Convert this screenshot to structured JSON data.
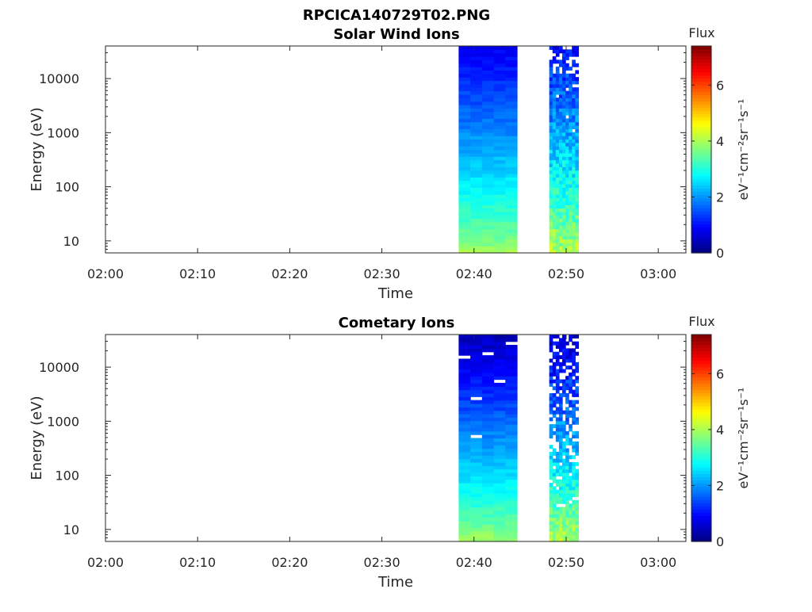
{
  "figure": {
    "file_title": "RPCICA140729T02.PNG"
  },
  "chart_data": [
    {
      "type": "heatmap",
      "title": "Solar Wind Ions",
      "xlabel": "Time",
      "ylabel": "Energy (eV)",
      "x_ticks": [
        "02:00",
        "02:10",
        "02:20",
        "02:30",
        "02:40",
        "02:50",
        "03:00"
      ],
      "xlim": [
        "02:00",
        "03:03"
      ],
      "y_scale": "log",
      "y_ticks": [
        10,
        100,
        1000,
        10000
      ],
      "y_tick_labels": [
        "10",
        "100",
        "1000",
        "10000"
      ],
      "ylim": [
        6,
        40000
      ],
      "colorbar": {
        "title": "Flux",
        "label": "eV⁻¹cm⁻²sr⁻¹s⁻¹",
        "range": [
          0,
          7.4
        ],
        "ticks": [
          0,
          2,
          4,
          6
        ],
        "colormap": "jet"
      },
      "data_blocks": [
        {
          "start": "02:38:20",
          "end": "02:44:40",
          "flux_low_energy": 4.0,
          "flux_high_energy": 0.8,
          "note": "dense block"
        },
        {
          "start": "02:48:10",
          "end": "02:51:20",
          "flux_low_energy": 4.2,
          "flux_high_energy": 1.0,
          "note": "noisy block with gaps"
        }
      ]
    },
    {
      "type": "heatmap",
      "title": "Cometary Ions",
      "xlabel": "Time",
      "ylabel": "Energy (eV)",
      "x_ticks": [
        "02:00",
        "02:10",
        "02:20",
        "02:30",
        "02:40",
        "02:50",
        "03:00"
      ],
      "xlim": [
        "02:00",
        "03:03"
      ],
      "y_scale": "log",
      "y_ticks": [
        10,
        100,
        1000,
        10000
      ],
      "y_tick_labels": [
        "10",
        "100",
        "1000",
        "10000"
      ],
      "ylim": [
        6,
        40000
      ],
      "colorbar": {
        "title": "Flux",
        "label": "eV⁻¹cm⁻²sr⁻¹s⁻¹",
        "range": [
          0,
          7.4
        ],
        "ticks": [
          0,
          2,
          4,
          6
        ],
        "colormap": "jet"
      },
      "data_blocks": [
        {
          "start": "02:38:20",
          "end": "02:44:40",
          "flux_low_energy": 4.0,
          "flux_high_energy": 0.4,
          "note": "dense block with gaps"
        },
        {
          "start": "02:48:10",
          "end": "02:51:20",
          "flux_low_energy": 4.2,
          "flux_high_energy": 0.6,
          "note": "sparse block with many gaps"
        }
      ]
    }
  ]
}
